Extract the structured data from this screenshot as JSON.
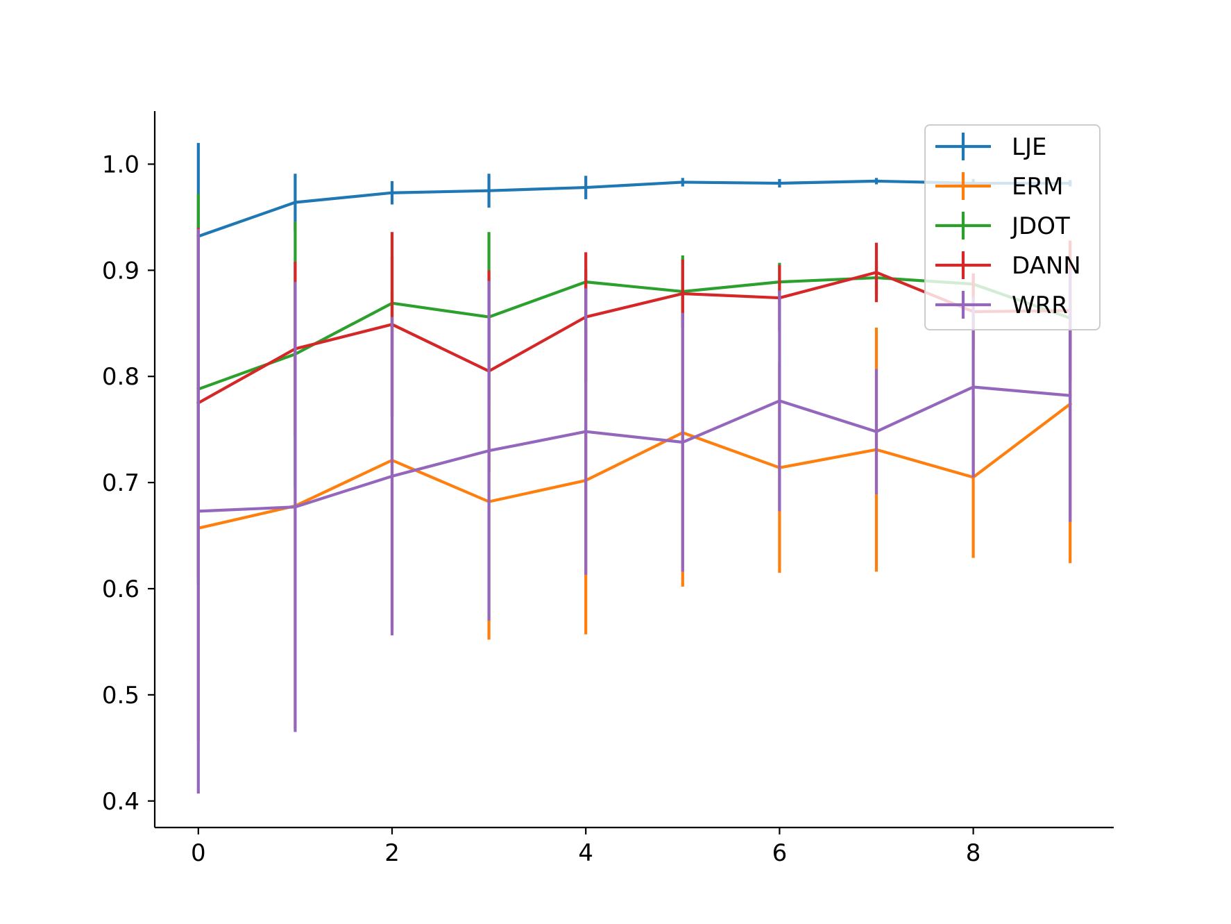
{
  "chart_data": {
    "type": "line",
    "title": "",
    "xlabel": "",
    "ylabel": "",
    "x": [
      0,
      1,
      2,
      3,
      4,
      5,
      6,
      7,
      8,
      9
    ],
    "xlim": [
      -0.45,
      9.45
    ],
    "ylim": [
      0.375,
      1.05
    ],
    "xticks": [
      0,
      2,
      4,
      6,
      8
    ],
    "yticks": [
      0.4,
      0.5,
      0.6,
      0.7,
      0.8,
      0.9,
      1.0
    ],
    "xtick_labels": [
      "0",
      "2",
      "4",
      "6",
      "8"
    ],
    "ytick_labels": [
      "0.4",
      "0.5",
      "0.6",
      "0.7",
      "0.8",
      "0.9",
      "1.0"
    ],
    "grid": false,
    "legend_position": "top-right",
    "error_bars": true,
    "series": [
      {
        "name": "LJE",
        "color": "#1f77b4",
        "values": [
          0.932,
          0.964,
          0.973,
          0.975,
          0.978,
          0.983,
          0.982,
          0.984,
          0.982,
          0.982
        ],
        "errors": [
          0.088,
          0.027,
          0.011,
          0.016,
          0.011,
          0.004,
          0.004,
          0.003,
          0.004,
          0.003
        ]
      },
      {
        "name": "ERM",
        "color": "#ff7f0e",
        "values": [
          0.657,
          0.678,
          0.721,
          0.682,
          0.702,
          0.747,
          0.714,
          0.731,
          0.705,
          0.774
        ],
        "errors": [
          0.2,
          0.21,
          0.16,
          0.13,
          0.145,
          0.145,
          0.099,
          0.115,
          0.076,
          0.15
        ]
      },
      {
        "name": "JDOT",
        "color": "#2ca02c",
        "values": [
          0.788,
          0.821,
          0.869,
          0.856,
          0.889,
          0.88,
          0.889,
          0.893,
          0.887,
          0.855
        ],
        "errors": [
          0.184,
          0.125,
          0.044,
          0.08,
          0.012,
          0.034,
          0.018,
          0.015,
          0.01,
          0.03
        ]
      },
      {
        "name": "DANN",
        "color": "#d62728",
        "values": [
          0.775,
          0.826,
          0.849,
          0.805,
          0.856,
          0.878,
          0.874,
          0.898,
          0.861,
          0.862
        ],
        "errors": [
          0.165,
          0.082,
          0.087,
          0.095,
          0.061,
          0.032,
          0.031,
          0.028,
          0.036,
          0.066
        ]
      },
      {
        "name": "WRR",
        "color": "#9467bd",
        "values": [
          0.673,
          0.677,
          0.706,
          0.73,
          0.748,
          0.738,
          0.777,
          0.748,
          0.79,
          0.782
        ],
        "errors": [
          0.266,
          0.212,
          0.15,
          0.16,
          0.135,
          0.122,
          0.104,
          0.059,
          0.085,
          0.119
        ]
      }
    ]
  }
}
